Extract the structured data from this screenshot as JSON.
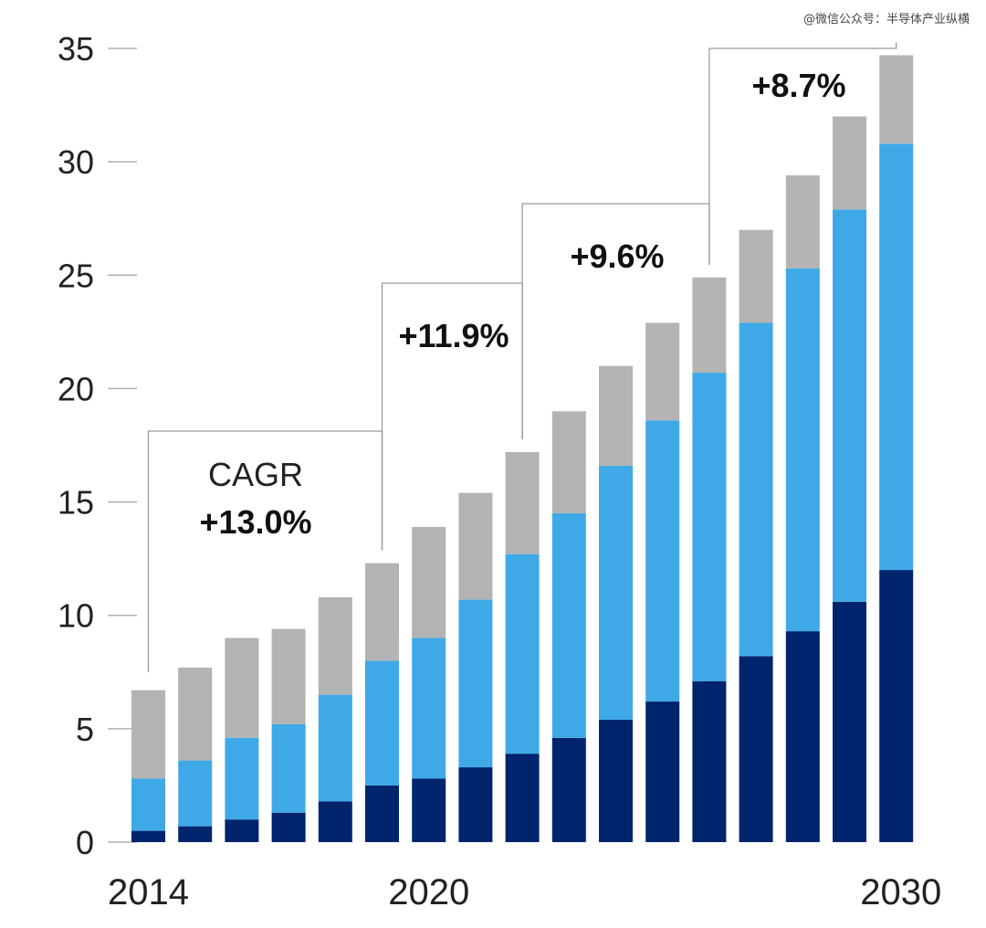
{
  "watermark": "@微信公众号：半导体产业纵横",
  "chart_data": {
    "type": "bar",
    "stacked": true,
    "x_tick_labels": [
      "2014",
      "2020",
      "2030"
    ],
    "y_ticks": [
      "0",
      "5",
      "10",
      "15",
      "20",
      "25",
      "30",
      "35"
    ],
    "ylim": [
      0,
      35
    ],
    "grid": false,
    "series": [
      {
        "values": [
          0.5,
          0.7,
          1.0,
          1.3,
          1.8,
          2.5,
          2.8,
          3.3,
          3.9,
          4.6,
          5.4,
          6.2,
          7.1,
          8.2,
          9.3,
          10.6,
          12.0
        ]
      },
      {
        "values": [
          2.3,
          2.9,
          3.6,
          3.9,
          4.7,
          5.5,
          6.2,
          7.4,
          8.8,
          9.9,
          11.2,
          12.4,
          13.6,
          14.7,
          16.0,
          17.3,
          18.8
        ]
      },
      {
        "values": [
          3.9,
          4.1,
          4.4,
          4.2,
          4.3,
          4.3,
          4.9,
          4.7,
          4.5,
          4.5,
          4.4,
          4.3,
          4.2,
          4.1,
          4.1,
          4.1,
          3.9
        ]
      }
    ],
    "colors": [
      "#00256c",
      "#3fa9e8",
      "#b3b3b3"
    ],
    "cagr_brackets": [
      {
        "title": "CAGR",
        "value": "+13.0%"
      },
      {
        "value": "+11.9%"
      },
      {
        "value": "+9.6%"
      },
      {
        "value": "+8.7%"
      }
    ]
  }
}
